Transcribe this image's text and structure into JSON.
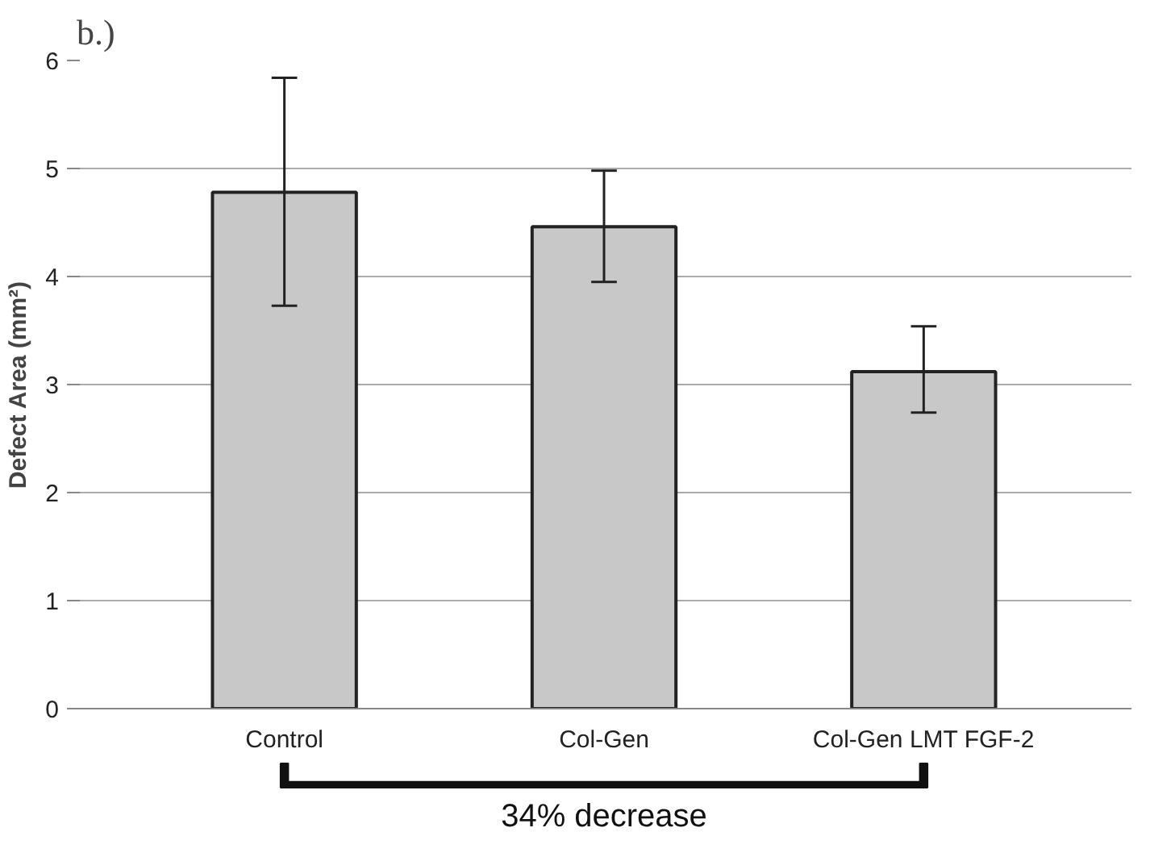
{
  "chart_data": {
    "type": "bar",
    "title": "b.)",
    "ylabel": "Defect Area (mm²)",
    "categories": [
      "Control",
      "Col-Gen",
      "Col-Gen LMT FGF-2"
    ],
    "values": [
      4.78,
      4.46,
      3.12
    ],
    "errors": [
      [
        3.73,
        5.84
      ],
      [
        3.95,
        4.98
      ],
      [
        2.74,
        3.54
      ]
    ],
    "color": "#c8c8c8",
    "ylim": [
      0,
      6
    ],
    "yticks": [
      0,
      1,
      2,
      3,
      4,
      5,
      6
    ],
    "grid": "y",
    "annotations": [
      "34% decrease"
    ]
  }
}
